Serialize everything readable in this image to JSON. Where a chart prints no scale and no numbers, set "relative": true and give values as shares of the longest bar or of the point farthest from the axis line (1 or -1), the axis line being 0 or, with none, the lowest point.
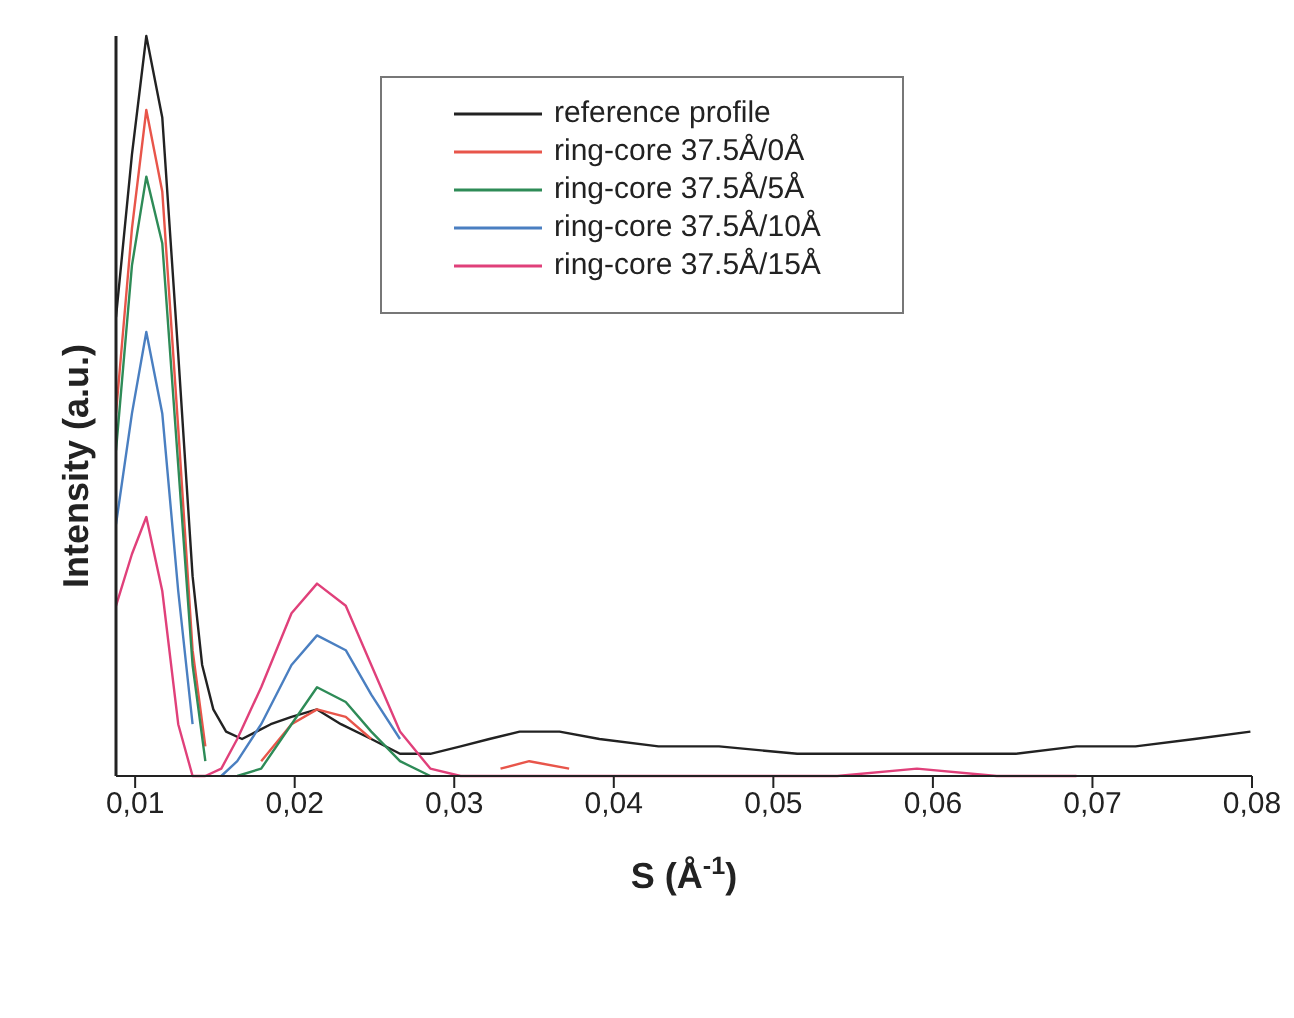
{
  "chart_data": {
    "type": "line",
    "xlabel": "S (Å$^{-1}$)",
    "ylabel": "Intensity (a.u.)",
    "relative": true,
    "xlim": [
      0.0088,
      0.08
    ],
    "xticks": [
      {
        "value": 0.01,
        "label": "0,01"
      },
      {
        "value": 0.02,
        "label": "0,02"
      },
      {
        "value": 0.03,
        "label": "0,03"
      },
      {
        "value": 0.04,
        "label": "0,04"
      },
      {
        "value": 0.05,
        "label": "0,05"
      },
      {
        "value": 0.06,
        "label": "0,06"
      },
      {
        "value": 0.07,
        "label": "0,07"
      },
      {
        "value": 0.08,
        "label": "0,08"
      }
    ],
    "x": [
      0.0088,
      0.0098,
      0.0107,
      0.0117,
      0.0127,
      0.0136,
      0.0144,
      0.0154,
      0.0164,
      0.0179,
      0.0198,
      0.0214,
      0.0232,
      0.0248,
      0.0266,
      0.0285,
      0.0304,
      0.0329,
      0.0347,
      0.0372,
      0.0403,
      0.0441,
      0.0491,
      0.054,
      0.059,
      0.064,
      0.069
    ],
    "legend": "top",
    "grid": false,
    "marker": "none",
    "line_style": "solid",
    "series": [
      {
        "name": "reference profile",
        "color": "#222222",
        "x": [
          0.0088,
          0.0098,
          0.0107,
          0.0117,
          0.0127,
          0.0136,
          0.0142,
          0.0149,
          0.0157,
          0.0167,
          0.0176,
          0.0185,
          0.0198,
          0.0214,
          0.0229,
          0.0248,
          0.0266,
          0.0285,
          0.0304,
          0.0322,
          0.0341,
          0.0366,
          0.0391,
          0.0428,
          0.0466,
          0.0515,
          0.0565,
          0.0615,
          0.0652,
          0.069,
          0.0727,
          0.0764,
          0.0799
        ],
        "values": [
          0.62,
          0.84,
          1,
          0.89,
          0.57,
          0.27,
          0.15,
          0.09,
          0.06,
          0.05,
          0.06,
          0.07,
          0.08,
          0.09,
          0.07,
          0.05,
          0.03,
          0.03,
          0.04,
          0.05,
          0.06,
          0.06,
          0.05,
          0.04,
          0.04,
          0.03,
          0.03,
          0.03,
          0.03,
          0.04,
          0.04,
          0.05,
          0.06
        ]
      },
      {
        "name": "ring-core 37.5Å/0Å",
        "color": "#e8554a",
        "values": [
          0.49,
          0.74,
          0.9,
          0.79,
          0.47,
          0.17,
          0.04,
          null,
          null,
          0.02,
          0.07,
          0.09,
          0.08,
          0.05,
          null,
          null,
          null,
          0.01,
          0.02,
          0.01,
          null,
          null,
          null,
          null,
          null,
          null,
          null
        ]
      },
      {
        "name": "ring-core 37.5Å/5Å",
        "color": "#2e8b57",
        "values": [
          0.44,
          0.69,
          0.81,
          0.72,
          0.42,
          0.15,
          0.02,
          null,
          0,
          0.01,
          0.07,
          0.12,
          0.1,
          0.06,
          0.02,
          0,
          null,
          null,
          null,
          null,
          null,
          null,
          null,
          null,
          null,
          null,
          null
        ]
      },
      {
        "name": "ring-core 37.5Å/10Å",
        "color": "#4a7fc1",
        "values": [
          0.34,
          0.49,
          0.6,
          0.49,
          0.25,
          0.07,
          null,
          0,
          0.02,
          0.07,
          0.15,
          0.19,
          0.17,
          0.11,
          0.05,
          null,
          null,
          null,
          null,
          null,
          null,
          null,
          null,
          null,
          null,
          null,
          null
        ]
      },
      {
        "name": "ring-core 37.5Å/15Å",
        "color": "#e0407a",
        "values": [
          0.23,
          0.3,
          0.35,
          0.25,
          0.07,
          0,
          0,
          0.01,
          0.05,
          0.12,
          0.22,
          0.26,
          0.23,
          0.15,
          0.06,
          0.01,
          0,
          0,
          0,
          0,
          0,
          0,
          0,
          0,
          0.01,
          0,
          0
        ]
      }
    ]
  }
}
